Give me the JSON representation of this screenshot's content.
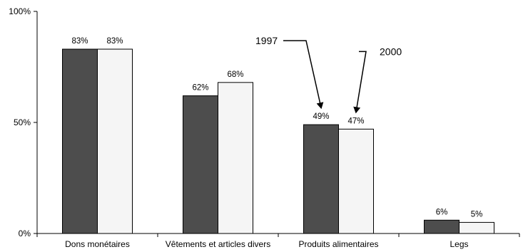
{
  "chart_data": {
    "type": "bar",
    "categories": [
      "Dons monétaires",
      "Vêtements et articles divers",
      "Produits alimentaires",
      "Legs"
    ],
    "series": [
      {
        "name": "1997",
        "values": [
          83,
          62,
          49,
          6
        ],
        "data_labels": [
          "83%",
          "62%",
          "49%",
          "6%"
        ],
        "color": "#4d4d4d"
      },
      {
        "name": "2000",
        "values": [
          83,
          68,
          47,
          5
        ],
        "data_labels": [
          "83%",
          "68%",
          "47%",
          "5%"
        ],
        "color": "#f5f5f5"
      }
    ],
    "ylim": [
      0,
      100
    ],
    "y_ticks": [
      0,
      50,
      100
    ],
    "y_tick_labels": [
      "0%",
      "50%",
      "100%"
    ],
    "grid": false,
    "legend": "annotation arrows pointing to third category bars",
    "annotations": [
      {
        "text": "1997",
        "series": 0,
        "category": 2
      },
      {
        "text": "2000",
        "series": 1,
        "category": 2
      }
    ]
  }
}
